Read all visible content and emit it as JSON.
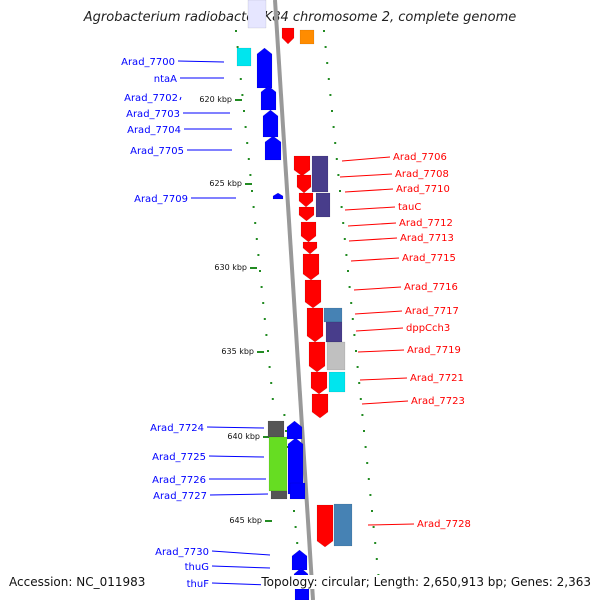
{
  "header": {
    "title": "Agrobacterium radiobacter K84 chromosome 2, complete genome"
  },
  "footer": {
    "accession": "Accession: NC_011983",
    "summary": "Topology: circular; Length: 2,650,913 bp; Genes: 2,363"
  },
  "colors": {
    "left_strand": "#0000ff",
    "right_strand": "#ff0000",
    "backbone": "#999999",
    "tick": "#228b22"
  },
  "ticks": [
    {
      "label": "620 kbp"
    },
    {
      "label": "625 kbp"
    },
    {
      "label": "630 kbp"
    },
    {
      "label": "635 kbp"
    },
    {
      "label": "640 kbp"
    },
    {
      "label": "645 kbp"
    }
  ],
  "left_labels": [
    "Arad_7700",
    "ntaA",
    "Arad_7702",
    "Arad_7703",
    "Arad_7704",
    "Arad_7705",
    "Arad_7709",
    "Arad_7724",
    "Arad_7725",
    "Arad_7726",
    "Arad_7727",
    "Arad_7730",
    "thuG",
    "thuF"
  ],
  "right_labels": [
    "Arad_7706",
    "Arad_7708",
    "Arad_7710",
    "tauC",
    "Arad_7712",
    "Arad_7713",
    "Arad_7715",
    "Arad_7716",
    "Arad_7717",
    "dppCch3",
    "Arad_7719",
    "Arad_7721",
    "Arad_7723",
    "Arad_7728"
  ]
}
